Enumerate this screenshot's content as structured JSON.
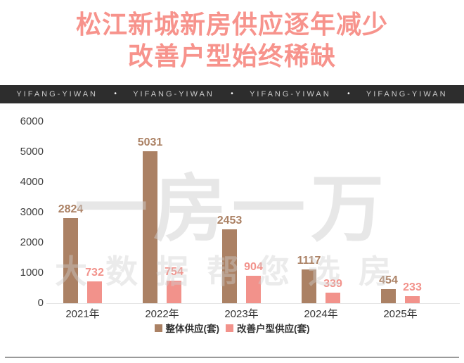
{
  "title": {
    "line1": "松江新城新房供应逐年减少",
    "line2": "改善户型始终稀缺"
  },
  "banner": {
    "brand": "YIFANG-YIWAN",
    "separator": "•",
    "repeat": 4
  },
  "watermark": {
    "line1": "一房一万",
    "line2": "大数据帮您选房"
  },
  "chart_data": {
    "type": "bar",
    "categories": [
      "2021年",
      "2022年",
      "2023年",
      "2024年",
      "2025年"
    ],
    "series": [
      {
        "name": "整体供应(套)",
        "color": "#ab8164",
        "values": [
          2824,
          5031,
          2453,
          1117,
          454
        ]
      },
      {
        "name": "改善户型供应(套)",
        "color": "#f2928b",
        "values": [
          732,
          754,
          904,
          339,
          233
        ]
      }
    ],
    "title": "",
    "xlabel": "",
    "ylabel": "",
    "ylim": [
      0,
      6000
    ],
    "yticks": [
      0,
      1000,
      2000,
      3000,
      4000,
      5000,
      6000
    ],
    "grid": false,
    "legend_position": "bottom",
    "value_labels": true
  },
  "colors": {
    "title_text": "#f7938c",
    "banner_bg": "#2d2d2d",
    "banner_text": "#cbcbcb",
    "bar_main": "#ab8164",
    "bar_secondary": "#f2928b",
    "axis_text": "#3d3d3d",
    "axis_line": "#e4e4e4",
    "divider": "#9a9a9a"
  }
}
